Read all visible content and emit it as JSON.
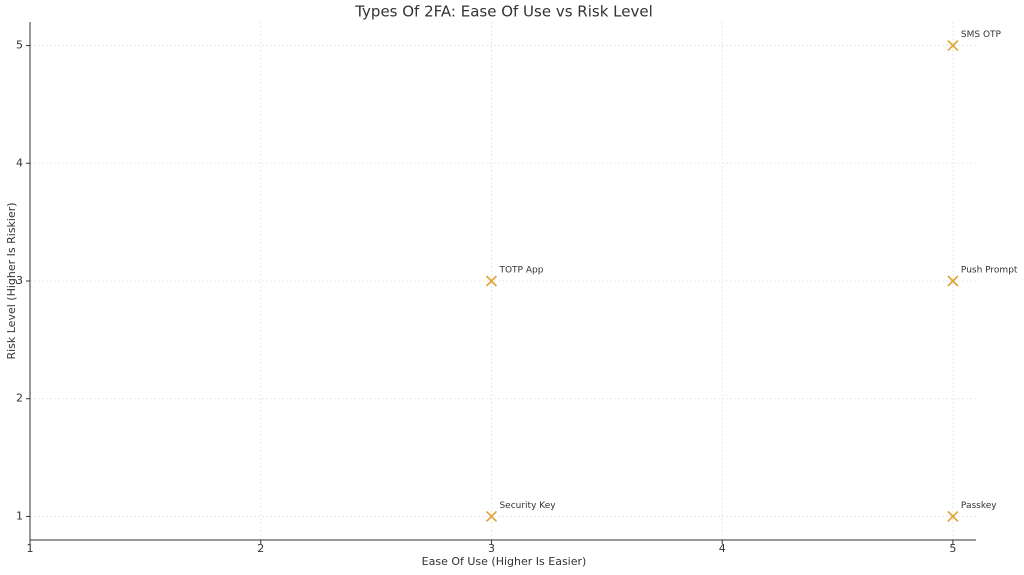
{
  "chart_data": {
    "type": "scatter",
    "title": "Types Of 2FA: Ease Of Use vs Risk Level",
    "x_label": "Ease Of Use (Higher Is Easier)",
    "y_label": "Risk Level (Higher Is Riskier)",
    "x": [
      5,
      3,
      5,
      3,
      5
    ],
    "values": [
      5,
      3,
      3,
      1,
      1
    ],
    "labels": [
      "SMS OTP",
      "TOTP App",
      "Push Prompt",
      "Security Key",
      "Passkey"
    ],
    "color": "#e3a22f",
    "marker": "x",
    "xlim": [
      1,
      5.1
    ],
    "xticks": [
      1,
      2,
      3,
      4,
      5
    ],
    "ylim": [
      0.8,
      5.2
    ],
    "yticks": [
      1,
      2,
      3,
      4,
      5
    ],
    "grid": true
  }
}
